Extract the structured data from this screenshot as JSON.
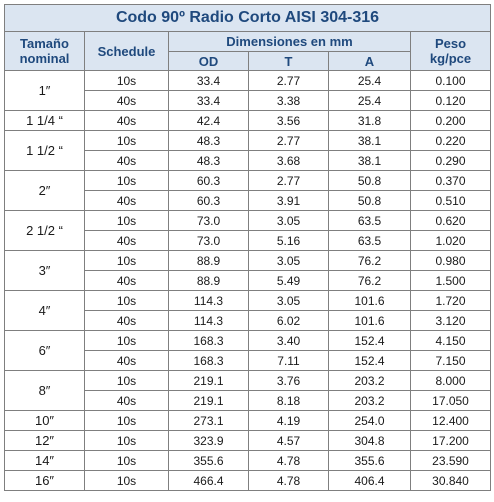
{
  "title": "Codo 90º Radio Corto AISI 304-316",
  "headers": {
    "nominal_line1": "Tamaño",
    "nominal_line2": "nominal",
    "schedule": "Schedule",
    "dimensions": "Dimensiones en mm",
    "od": "OD",
    "t": "T",
    "a": "A",
    "weight_line1": "Peso",
    "weight_line2": "kg/pce"
  },
  "groups": [
    {
      "size": "1″",
      "rows": [
        {
          "schedule": "10s",
          "od": "33.4",
          "t": "2.77",
          "a": "25.4",
          "weight": "0.100"
        },
        {
          "schedule": "40s",
          "od": "33.4",
          "t": "3.38",
          "a": "25.4",
          "weight": "0.120"
        }
      ]
    },
    {
      "size": "1 1/4 “",
      "rows": [
        {
          "schedule": "40s",
          "od": "42.4",
          "t": "3.56",
          "a": "31.8",
          "weight": "0.200"
        }
      ]
    },
    {
      "size": "1 1/2 “",
      "rows": [
        {
          "schedule": "10s",
          "od": "48.3",
          "t": "2.77",
          "a": "38.1",
          "weight": "0.220"
        },
        {
          "schedule": "40s",
          "od": "48.3",
          "t": "3.68",
          "a": "38.1",
          "weight": "0.290"
        }
      ]
    },
    {
      "size": "2″",
      "rows": [
        {
          "schedule": "10s",
          "od": "60.3",
          "t": "2.77",
          "a": "50.8",
          "weight": "0.370"
        },
        {
          "schedule": "40s",
          "od": "60.3",
          "t": "3.91",
          "a": "50.8",
          "weight": "0.510"
        }
      ]
    },
    {
      "size": "2 1/2 “",
      "rows": [
        {
          "schedule": "10s",
          "od": "73.0",
          "t": "3.05",
          "a": "63.5",
          "weight": "0.620"
        },
        {
          "schedule": "40s",
          "od": "73.0",
          "t": "5.16",
          "a": "63.5",
          "weight": "1.020"
        }
      ]
    },
    {
      "size": "3″",
      "rows": [
        {
          "schedule": "10s",
          "od": "88.9",
          "t": "3.05",
          "a": "76.2",
          "weight": "0.980"
        },
        {
          "schedule": "40s",
          "od": "88.9",
          "t": "5.49",
          "a": "76.2",
          "weight": "1.500"
        }
      ]
    },
    {
      "size": "4″",
      "rows": [
        {
          "schedule": "10s",
          "od": "114.3",
          "t": "3.05",
          "a": "101.6",
          "weight": "1.720"
        },
        {
          "schedule": "40s",
          "od": "114.3",
          "t": "6.02",
          "a": "101.6",
          "weight": "3.120"
        }
      ]
    },
    {
      "size": "6″",
      "rows": [
        {
          "schedule": "10s",
          "od": "168.3",
          "t": "3.40",
          "a": "152.4",
          "weight": "4.150"
        },
        {
          "schedule": "40s",
          "od": "168.3",
          "t": "7.11",
          "a": "152.4",
          "weight": "7.150"
        }
      ]
    },
    {
      "size": "8″",
      "rows": [
        {
          "schedule": "10s",
          "od": "219.1",
          "t": "3.76",
          "a": "203.2",
          "weight": "8.000"
        },
        {
          "schedule": "40s",
          "od": "219.1",
          "t": "8.18",
          "a": "203.2",
          "weight": "17.050"
        }
      ]
    },
    {
      "size": "10″",
      "rows": [
        {
          "schedule": "10s",
          "od": "273.1",
          "t": "4.19",
          "a": "254.0",
          "weight": "12.400"
        }
      ]
    },
    {
      "size": "12″",
      "rows": [
        {
          "schedule": "10s",
          "od": "323.9",
          "t": "4.57",
          "a": "304.8",
          "weight": "17.200"
        }
      ]
    },
    {
      "size": "14″",
      "rows": [
        {
          "schedule": "10s",
          "od": "355.6",
          "t": "4.78",
          "a": "355.6",
          "weight": "23.590"
        }
      ]
    },
    {
      "size": "16″",
      "rows": [
        {
          "schedule": "10s",
          "od": "466.4",
          "t": "4.78",
          "a": "406.4",
          "weight": "30.840"
        }
      ]
    }
  ]
}
